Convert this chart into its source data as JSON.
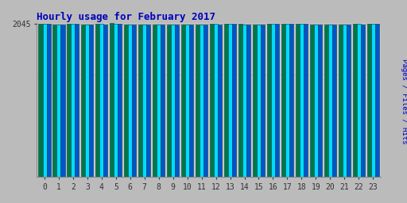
{
  "title": "Hourly usage for February 2017",
  "hours": [
    0,
    1,
    2,
    3,
    4,
    5,
    6,
    7,
    8,
    9,
    10,
    11,
    12,
    13,
    14,
    15,
    16,
    17,
    18,
    19,
    20,
    21,
    22,
    23
  ],
  "pages": [
    2040,
    2035,
    2042,
    2030,
    2038,
    2048,
    2030,
    2036,
    2034,
    2033,
    2034,
    2035,
    2038,
    2044,
    2037,
    2033,
    2044,
    2043,
    2041,
    2037,
    2035,
    2036,
    2038,
    2044
  ],
  "files": [
    2038,
    2033,
    2040,
    2028,
    2036,
    2047,
    2028,
    2034,
    2033,
    2032,
    2033,
    2033,
    2036,
    2043,
    2036,
    2032,
    2043,
    2040,
    2039,
    2035,
    2033,
    2034,
    2037,
    2043
  ],
  "hits": [
    2041,
    2035,
    2043,
    2036,
    2040,
    2049,
    2033,
    2037,
    2035,
    2034,
    2035,
    2036,
    2040,
    2045,
    2038,
    2034,
    2045,
    2042,
    2042,
    2037,
    2036,
    2037,
    2039,
    2045
  ],
  "color_pages": "#00DDFF",
  "color_files": "#0055CC",
  "color_hits": "#007744",
  "bar_edge_color": "#004455",
  "background_color": "#BBBBBB",
  "plot_bg_color": "#C8C8C8",
  "title_color": "#0000BB",
  "ylabel_color": "#0000BB",
  "ylabel_text": "Pages / Files / Hits",
  "ylim_min": 0,
  "ylim_max": 2052,
  "ytick_val": 2045,
  "title_fontsize": 9,
  "tick_fontsize": 7
}
